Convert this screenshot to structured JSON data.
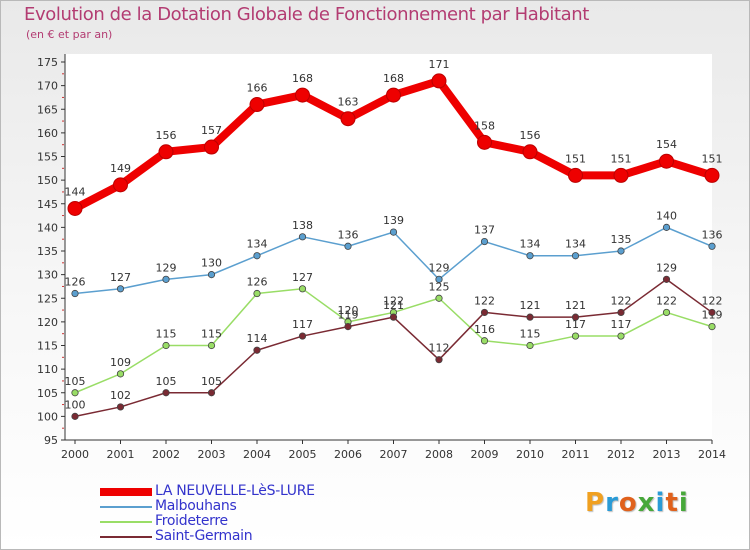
{
  "header": {
    "title": "Evolution de la Dotation Globale de Fonctionnement par Habitant",
    "subtitle": "(en € et par an)"
  },
  "logo": {
    "text": "Proxiti",
    "colors": [
      "#f0a020",
      "#2a9bd6",
      "#e0611c",
      "#47a83a",
      "#2a9bd6",
      "#e0611c",
      "#47a83a"
    ]
  },
  "chart_data": {
    "type": "line",
    "x": [
      2000,
      2001,
      2002,
      2003,
      2004,
      2005,
      2006,
      2007,
      2008,
      2009,
      2010,
      2011,
      2012,
      2013,
      2014
    ],
    "ylim": [
      95,
      175
    ],
    "yticks": [
      95,
      100,
      105,
      110,
      115,
      120,
      125,
      130,
      135,
      140,
      145,
      150,
      155,
      160,
      165,
      170,
      175
    ],
    "grid": false,
    "legend_position": "bottom-left",
    "series": [
      {
        "name": "LA NEUVELLE-LèS-LURE",
        "color": "#ee0000",
        "emphasis": true,
        "values": [
          144,
          149,
          156,
          157,
          166,
          168,
          163,
          168,
          171,
          158,
          156,
          151,
          151,
          154,
          151
        ],
        "labels": [
          "144",
          "149",
          "156",
          "157",
          "166",
          "168",
          "163",
          "168",
          "171",
          "158",
          "156",
          "151",
          "151",
          "154",
          "151"
        ]
      },
      {
        "name": "Malbouhans",
        "color": "#5b9fcf",
        "values": [
          126,
          127,
          129,
          130,
          134,
          138,
          136,
          139,
          129,
          137,
          134,
          134,
          135,
          140,
          136
        ],
        "labels": [
          "126",
          "127",
          "129",
          "130",
          "134",
          "138",
          "136",
          "139",
          "129",
          "137",
          "134",
          "134",
          "135",
          "140",
          "136"
        ]
      },
      {
        "name": "Froideterre",
        "color": "#99dd66",
        "values": [
          105,
          109,
          115,
          115,
          126,
          127,
          120,
          122,
          125,
          116,
          115,
          117,
          117,
          122,
          119
        ],
        "labels": [
          "105",
          "109",
          "115",
          "115",
          "126",
          "127",
          "120",
          "122",
          "125",
          "116",
          "115",
          "117",
          "117",
          "122",
          "119"
        ]
      },
      {
        "name": "Saint-Germain",
        "color": "#7a2a33",
        "values": [
          100,
          102,
          105,
          105,
          114,
          117,
          119,
          121,
          112,
          122,
          121,
          121,
          122,
          129,
          122
        ],
        "labels": [
          "100",
          "102",
          "105",
          "105",
          "114",
          "117",
          "119",
          "121",
          "112",
          "122",
          "121",
          "121",
          "122",
          "129",
          "122"
        ]
      }
    ]
  }
}
